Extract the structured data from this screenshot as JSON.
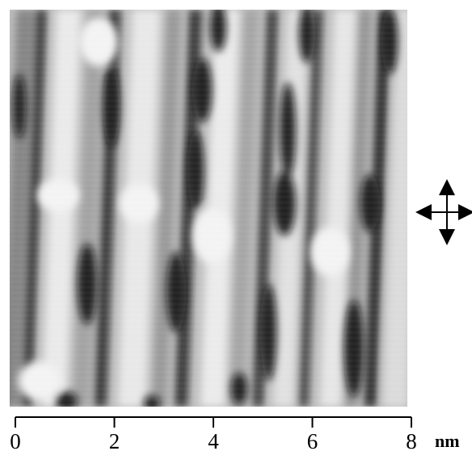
{
  "image": {
    "description_kind": "grayscale scanning tunneling microscope image with dark vertical stripes",
    "palette": {
      "dark": "#111111",
      "mid": "#8a8a8a",
      "light": "#f2f2f2"
    }
  },
  "scale_bar": {
    "ticks": [
      "0",
      "2",
      "4",
      "6",
      "8"
    ],
    "unit": "nm"
  },
  "direction_marker": {
    "icon": "four-way-arrow-icon"
  }
}
